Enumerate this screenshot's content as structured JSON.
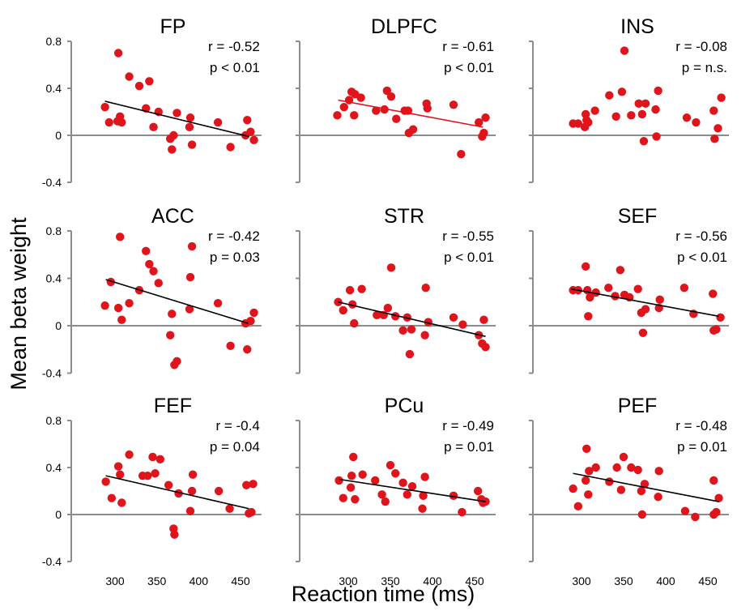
{
  "figure": {
    "xlabel": "Reaction time (ms)",
    "ylabel": "Mean beta weight"
  },
  "chart_data": {
    "type": "scatter",
    "xlim": [
      270,
      475
    ],
    "ylim": [
      -0.4,
      0.8
    ],
    "xticks": [
      300,
      350,
      400,
      450
    ],
    "yticks": [
      -0.4,
      0,
      0.4,
      0.8
    ],
    "xtick_labels": [
      "300",
      "350",
      "400",
      "450"
    ],
    "ytick_labels": [
      "-0.4",
      "0",
      "0.4",
      "0.8"
    ],
    "point_color": "#e0141b",
    "panels": [
      {
        "title": "FP",
        "r_label": "r = -0.52",
        "p_label": "p < 0.01",
        "line_color": "#000000",
        "line": [
          [
            288,
            0.29
          ],
          [
            460,
            -0.01
          ]
        ],
        "points": [
          [
            288,
            0.24
          ],
          [
            293,
            0.11
          ],
          [
            303,
            0.12
          ],
          [
            304,
            0.7
          ],
          [
            306,
            0.16
          ],
          [
            308,
            0.11
          ],
          [
            317,
            0.5
          ],
          [
            329,
            0.42
          ],
          [
            337,
            0.23
          ],
          [
            341,
            0.46
          ],
          [
            346,
            0.07
          ],
          [
            352,
            0.2
          ],
          [
            366,
            -0.03
          ],
          [
            368,
            -0.12
          ],
          [
            370,
            0.0
          ],
          [
            374,
            0.19
          ],
          [
            389,
            0.07
          ],
          [
            390,
            0.15
          ],
          [
            392,
            -0.08
          ],
          [
            423,
            0.11
          ],
          [
            438,
            -0.1
          ],
          [
            456,
            0.0
          ],
          [
            458,
            0.13
          ],
          [
            462,
            0.03
          ],
          [
            466,
            -0.04
          ]
        ]
      },
      {
        "title": "DLPFC",
        "r_label": "r = -0.61",
        "p_label": "p < 0.01",
        "line_color": "#e0141b",
        "line": [
          [
            288,
            0.3
          ],
          [
            460,
            0.07
          ]
        ],
        "points": [
          [
            287,
            0.17
          ],
          [
            295,
            0.24
          ],
          [
            301,
            0.3
          ],
          [
            304,
            0.37
          ],
          [
            307,
            0.17
          ],
          [
            308,
            0.35
          ],
          [
            315,
            0.32
          ],
          [
            333,
            0.21
          ],
          [
            343,
            0.22
          ],
          [
            346,
            0.38
          ],
          [
            351,
            0.33
          ],
          [
            357,
            0.14
          ],
          [
            367,
            0.21
          ],
          [
            371,
            0.21
          ],
          [
            372,
            0.02
          ],
          [
            377,
            0.05
          ],
          [
            393,
            0.27
          ],
          [
            394,
            0.23
          ],
          [
            425,
            0.26
          ],
          [
            434,
            -0.16
          ],
          [
            455,
            0.11
          ],
          [
            459,
            -0.01
          ],
          [
            461,
            0.02
          ],
          [
            463,
            0.15
          ]
        ]
      },
      {
        "title": "INS",
        "r_label": "r = -0.08",
        "p_label": "p = n.s.",
        "line_color": "#000000",
        "line": null,
        "points": [
          [
            290,
            0.1
          ],
          [
            296,
            0.1
          ],
          [
            304,
            0.07
          ],
          [
            305,
            0.18
          ],
          [
            306,
            0.13
          ],
          [
            308,
            0.11
          ],
          [
            316,
            0.21
          ],
          [
            333,
            0.34
          ],
          [
            341,
            0.16
          ],
          [
            348,
            0.37
          ],
          [
            351,
            0.72
          ],
          [
            359,
            0.17
          ],
          [
            368,
            0.27
          ],
          [
            372,
            0.18
          ],
          [
            374,
            -0.05
          ],
          [
            376,
            0.27
          ],
          [
            388,
            0.22
          ],
          [
            389,
            -0.01
          ],
          [
            391,
            0.38
          ],
          [
            425,
            0.15
          ],
          [
            436,
            0.11
          ],
          [
            457,
            0.21
          ],
          [
            458,
            -0.03
          ],
          [
            462,
            0.06
          ],
          [
            466,
            0.32
          ]
        ]
      },
      {
        "title": "ACC",
        "r_label": "r = -0.42",
        "p_label": "p = 0.03",
        "line_color": "#000000",
        "line": [
          [
            289,
            0.39
          ],
          [
            459,
            0.02
          ]
        ],
        "points": [
          [
            288,
            0.17
          ],
          [
            295,
            0.37
          ],
          [
            304,
            0.15
          ],
          [
            306,
            0.75
          ],
          [
            308,
            0.05
          ],
          [
            317,
            0.19
          ],
          [
            329,
            0.3
          ],
          [
            337,
            0.63
          ],
          [
            341,
            0.52
          ],
          [
            346,
            0.46
          ],
          [
            352,
            0.36
          ],
          [
            366,
            -0.08
          ],
          [
            368,
            0.1
          ],
          [
            371,
            -0.33
          ],
          [
            374,
            -0.3
          ],
          [
            389,
            0.14
          ],
          [
            390,
            0.41
          ],
          [
            392,
            0.67
          ],
          [
            423,
            0.19
          ],
          [
            438,
            -0.17
          ],
          [
            456,
            0.02
          ],
          [
            458,
            -0.2
          ],
          [
            462,
            0.04
          ],
          [
            466,
            0.11
          ]
        ]
      },
      {
        "title": "STR",
        "r_label": "r = -0.55",
        "p_label": "p < 0.01",
        "line_color": "#000000",
        "line": [
          [
            288,
            0.2
          ],
          [
            463,
            -0.09
          ]
        ],
        "points": [
          [
            288,
            0.2
          ],
          [
            294,
            0.13
          ],
          [
            302,
            0.3
          ],
          [
            305,
            0.18
          ],
          [
            307,
            0.02
          ],
          [
            316,
            0.31
          ],
          [
            334,
            0.09
          ],
          [
            342,
            0.09
          ],
          [
            347,
            0.15
          ],
          [
            351,
            0.49
          ],
          [
            356,
            0.08
          ],
          [
            365,
            -0.04
          ],
          [
            370,
            0.07
          ],
          [
            373,
            -0.24
          ],
          [
            375,
            -0.03
          ],
          [
            391,
            -0.08
          ],
          [
            392,
            0.32
          ],
          [
            395,
            0.03
          ],
          [
            425,
            0.07
          ],
          [
            436,
            0.01
          ],
          [
            455,
            -0.08
          ],
          [
            459,
            -0.15
          ],
          [
            461,
            0.05
          ],
          [
            463,
            -0.18
          ]
        ]
      },
      {
        "title": "SEF",
        "r_label": "r = -0.56",
        "p_label": "p < 0.01",
        "line_color": "#000000",
        "line": [
          [
            288,
            0.31
          ],
          [
            463,
            0.08
          ]
        ],
        "points": [
          [
            290,
            0.3
          ],
          [
            296,
            0.3
          ],
          [
            305,
            0.5
          ],
          [
            307,
            0.3
          ],
          [
            308,
            0.08
          ],
          [
            310,
            0.24
          ],
          [
            317,
            0.28
          ],
          [
            332,
            0.32
          ],
          [
            340,
            0.25
          ],
          [
            346,
            0.47
          ],
          [
            351,
            0.26
          ],
          [
            357,
            0.24
          ],
          [
            367,
            0.31
          ],
          [
            371,
            0.11
          ],
          [
            373,
            -0.06
          ],
          [
            376,
            0.14
          ],
          [
            392,
            0.15
          ],
          [
            393,
            0.22
          ],
          [
            422,
            0.32
          ],
          [
            433,
            0.1
          ],
          [
            456,
            0.27
          ],
          [
            457,
            -0.04
          ],
          [
            460,
            -0.03
          ],
          [
            465,
            0.07
          ]
        ]
      },
      {
        "title": "FEF",
        "r_label": "r = -0.4",
        "p_label": "p = 0.04",
        "line_color": "#000000",
        "line": [
          [
            289,
            0.33
          ],
          [
            460,
            0.05
          ]
        ],
        "points": [
          [
            289,
            0.28
          ],
          [
            296,
            0.14
          ],
          [
            304,
            0.41
          ],
          [
            306,
            0.34
          ],
          [
            308,
            0.1
          ],
          [
            317,
            0.51
          ],
          [
            333,
            0.33
          ],
          [
            339,
            0.33
          ],
          [
            345,
            0.49
          ],
          [
            348,
            0.35
          ],
          [
            354,
            0.47
          ],
          [
            364,
            0.25
          ],
          [
            370,
            -0.12
          ],
          [
            371,
            -0.17
          ],
          [
            376,
            0.18
          ],
          [
            390,
            0.03
          ],
          [
            392,
            0.2
          ],
          [
            393,
            0.34
          ],
          [
            424,
            0.2
          ],
          [
            437,
            0.05
          ],
          [
            457,
            0.25
          ],
          [
            460,
            0.01
          ],
          [
            463,
            0.02
          ],
          [
            465,
            0.26
          ]
        ]
      },
      {
        "title": "PCu",
        "r_label": "r = -0.49",
        "p_label": "p = 0.01",
        "line_color": "#000000",
        "line": [
          [
            289,
            0.3
          ],
          [
            463,
            0.11
          ]
        ],
        "points": [
          [
            289,
            0.29
          ],
          [
            294,
            0.14
          ],
          [
            303,
            0.23
          ],
          [
            304,
            0.33
          ],
          [
            306,
            0.49
          ],
          [
            308,
            0.13
          ],
          [
            317,
            0.34
          ],
          [
            332,
            0.29
          ],
          [
            340,
            0.17
          ],
          [
            344,
            0.11
          ],
          [
            350,
            0.42
          ],
          [
            356,
            0.35
          ],
          [
            365,
            0.27
          ],
          [
            370,
            0.17
          ],
          [
            376,
            0.24
          ],
          [
            388,
            0.05
          ],
          [
            389,
            0.16
          ],
          [
            391,
            0.32
          ],
          [
            425,
            0.16
          ],
          [
            435,
            0.02
          ],
          [
            454,
            0.2
          ],
          [
            458,
            0.13
          ],
          [
            460,
            0.1
          ],
          [
            463,
            0.11
          ]
        ]
      },
      {
        "title": "PEF",
        "r_label": "r = -0.48",
        "p_label": "p = 0.01",
        "line_color": "#000000",
        "line": [
          [
            290,
            0.35
          ],
          [
            463,
            0.11
          ]
        ],
        "points": [
          [
            290,
            0.22
          ],
          [
            296,
            0.07
          ],
          [
            305,
            0.29
          ],
          [
            306,
            0.56
          ],
          [
            309,
            0.37
          ],
          [
            308,
            0.17
          ],
          [
            317,
            0.4
          ],
          [
            333,
            0.28
          ],
          [
            342,
            0.4
          ],
          [
            347,
            0.21
          ],
          [
            350,
            0.49
          ],
          [
            359,
            0.4
          ],
          [
            367,
            0.38
          ],
          [
            371,
            0.2
          ],
          [
            372,
            0.0
          ],
          [
            375,
            0.26
          ],
          [
            391,
            0.15
          ],
          [
            392,
            0.37
          ],
          [
            423,
            0.03
          ],
          [
            435,
            -0.02
          ],
          [
            457,
            0.29
          ],
          [
            457,
            0.0
          ],
          [
            460,
            0.02
          ],
          [
            463,
            0.14
          ]
        ]
      }
    ]
  }
}
